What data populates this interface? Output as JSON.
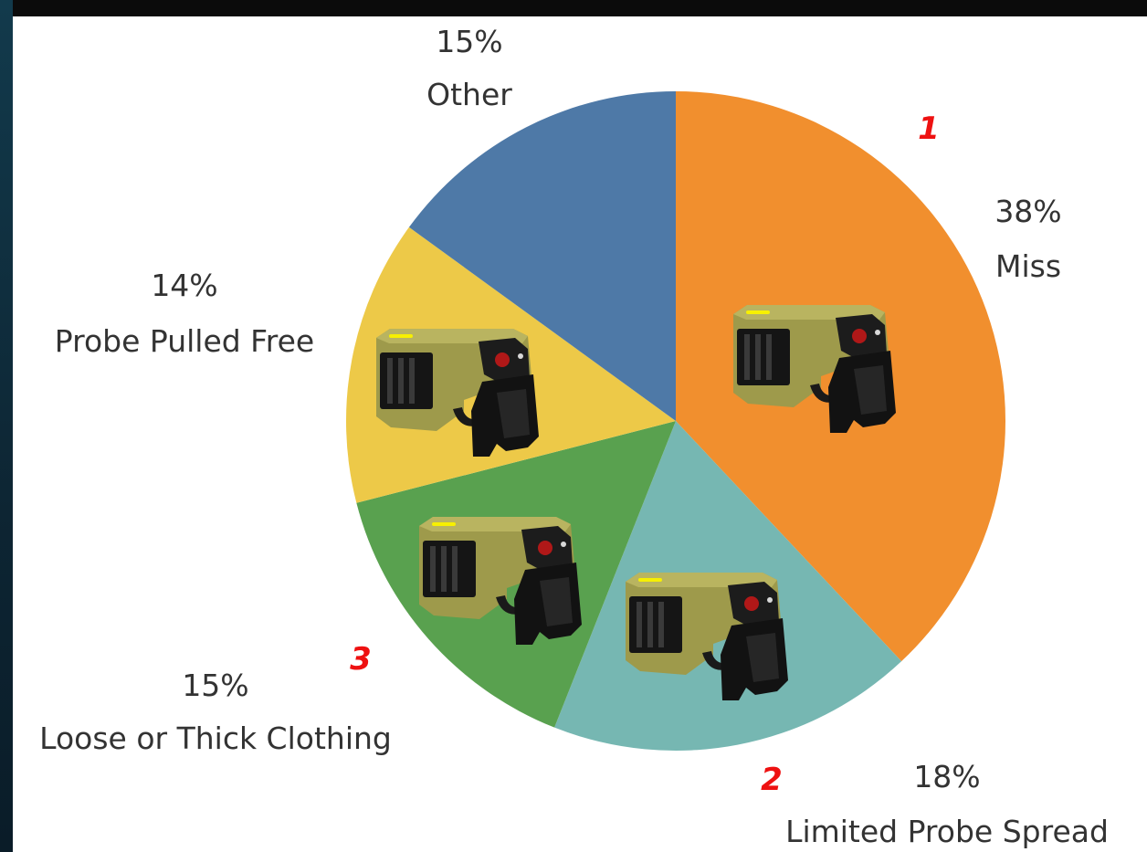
{
  "chart_data": {
    "type": "pie",
    "slices": [
      {
        "label": "Miss",
        "value": 38,
        "color": "#f18f2e",
        "rank": "1"
      },
      {
        "label": "Limited Probe Spread",
        "value": 18,
        "color": "#76b7b2",
        "rank": "2"
      },
      {
        "label": "Loose or Thick Clothing",
        "value": 15,
        "color": "#59a14f",
        "rank": "3"
      },
      {
        "label": "Probe Pulled Free",
        "value": 14,
        "color": "#edc948",
        "rank": ""
      },
      {
        "label": "Other",
        "value": 15,
        "color": "#4e79a7",
        "rank": ""
      }
    ],
    "value_format": "percent",
    "start_angle": "12 o'clock",
    "direction": "clockwise",
    "slice_icons": [
      {
        "slice": "Miss",
        "icon": "taser-icon"
      },
      {
        "slice": "Limited Probe Spread",
        "icon": "taser-icon"
      },
      {
        "slice": "Loose or Thick Clothing",
        "icon": "taser-icon"
      },
      {
        "slice": "Probe Pulled Free",
        "icon": "taser-icon"
      }
    ]
  },
  "colors": {
    "background": "#ffffff",
    "frame": "#0b0b0b",
    "rank_marker": "#ee1111",
    "label_text": "#333333"
  }
}
